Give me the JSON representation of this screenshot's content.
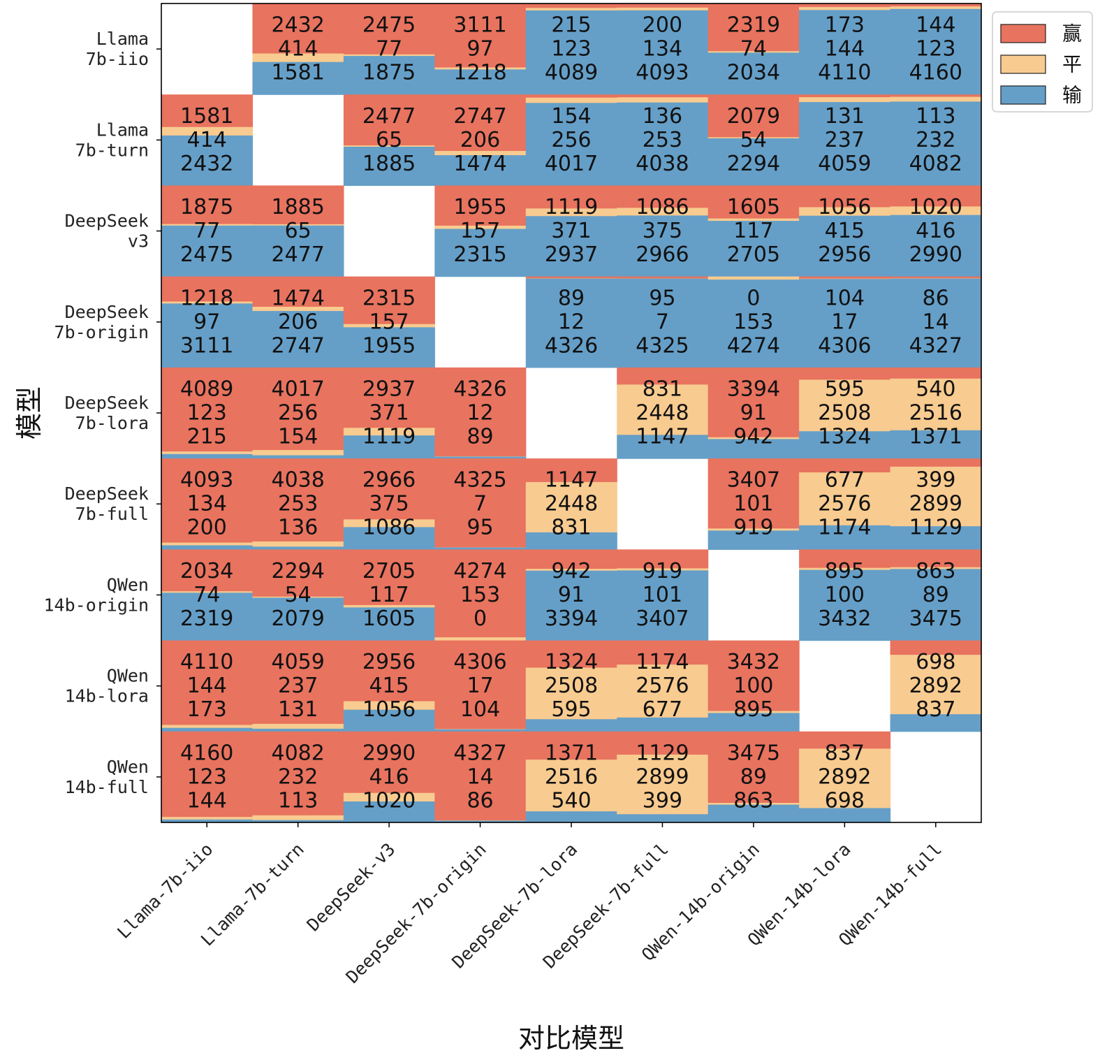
{
  "chart_data": {
    "type": "heatmap",
    "xlabel": "对比模型",
    "ylabel": "模型",
    "row_labels": [
      [
        "Llama",
        "7b-iio"
      ],
      [
        "Llama",
        "7b-turn"
      ],
      [
        "DeepSeek",
        "v3"
      ],
      [
        "DeepSeek",
        "7b-origin"
      ],
      [
        "DeepSeek",
        "7b-lora"
      ],
      [
        "DeepSeek",
        "7b-full"
      ],
      [
        "QWen",
        "14b-origin"
      ],
      [
        "QWen",
        "14b-lora"
      ],
      [
        "QWen",
        "14b-full"
      ]
    ],
    "col_labels": [
      "Llama-7b-iio",
      "Llama-7b-turn",
      "DeepSeek-v3",
      "DeepSeek-7b-origin",
      "DeepSeek-7b-lora",
      "DeepSeek-7b-full",
      "QWen-14b-origin",
      "QWen-14b-lora",
      "QWen-14b-full"
    ],
    "series": [
      {
        "name": "赢",
        "color": "#E8735F"
      },
      {
        "name": "平",
        "color": "#F8CB90"
      },
      {
        "name": "输",
        "color": "#659FC8"
      }
    ],
    "legend_position": "upper-right-outside",
    "cells": [
      [
        null,
        [
          2432,
          414,
          1581
        ],
        [
          2475,
          77,
          1875
        ],
        [
          3111,
          97,
          1218
        ],
        [
          215,
          123,
          4089
        ],
        [
          200,
          134,
          4093
        ],
        [
          2319,
          74,
          2034
        ],
        [
          173,
          144,
          4110
        ],
        [
          144,
          123,
          4160
        ]
      ],
      [
        [
          1581,
          414,
          2432
        ],
        null,
        [
          2477,
          65,
          1885
        ],
        [
          2747,
          206,
          1474
        ],
        [
          154,
          256,
          4017
        ],
        [
          136,
          253,
          4038
        ],
        [
          2079,
          54,
          2294
        ],
        [
          131,
          237,
          4059
        ],
        [
          113,
          232,
          4082
        ]
      ],
      [
        [
          1875,
          77,
          2475
        ],
        [
          1885,
          65,
          2477
        ],
        null,
        [
          1955,
          157,
          2315
        ],
        [
          1119,
          371,
          2937
        ],
        [
          1086,
          375,
          2966
        ],
        [
          1605,
          117,
          2705
        ],
        [
          1056,
          415,
          2956
        ],
        [
          1020,
          416,
          2990
        ]
      ],
      [
        [
          1218,
          97,
          3111
        ],
        [
          1474,
          206,
          2747
        ],
        [
          2315,
          157,
          1955
        ],
        null,
        [
          89,
          12,
          4326
        ],
        [
          95,
          7,
          4325
        ],
        [
          0,
          153,
          4274
        ],
        [
          104,
          17,
          4306
        ],
        [
          86,
          14,
          4327
        ]
      ],
      [
        [
          4089,
          123,
          215
        ],
        [
          4017,
          256,
          154
        ],
        [
          2937,
          371,
          1119
        ],
        [
          4326,
          12,
          89
        ],
        null,
        [
          831,
          2448,
          1147
        ],
        [
          3394,
          91,
          942
        ],
        [
          595,
          2508,
          1324
        ],
        [
          540,
          2516,
          1371
        ]
      ],
      [
        [
          4093,
          134,
          200
        ],
        [
          4038,
          253,
          136
        ],
        [
          2966,
          375,
          1086
        ],
        [
          4325,
          7,
          95
        ],
        [
          1147,
          2448,
          831
        ],
        null,
        [
          3407,
          101,
          919
        ],
        [
          677,
          2576,
          1174
        ],
        [
          399,
          2899,
          1129
        ]
      ],
      [
        [
          2034,
          74,
          2319
        ],
        [
          2294,
          54,
          2079
        ],
        [
          2705,
          117,
          1605
        ],
        [
          4274,
          153,
          0
        ],
        [
          942,
          91,
          3394
        ],
        [
          919,
          101,
          3407
        ],
        null,
        [
          895,
          100,
          3432
        ],
        [
          863,
          89,
          3475
        ]
      ],
      [
        [
          4110,
          144,
          173
        ],
        [
          4059,
          237,
          131
        ],
        [
          2956,
          415,
          1056
        ],
        [
          4306,
          17,
          104
        ],
        [
          1324,
          2508,
          595
        ],
        [
          1174,
          2576,
          677
        ],
        [
          3432,
          100,
          895
        ],
        null,
        [
          698,
          2892,
          837
        ]
      ],
      [
        [
          4160,
          123,
          144
        ],
        [
          4082,
          232,
          113
        ],
        [
          2990,
          416,
          1020
        ],
        [
          4327,
          14,
          86
        ],
        [
          1371,
          2516,
          540
        ],
        [
          1129,
          2899,
          399
        ],
        [
          3475,
          89,
          863
        ],
        [
          837,
          2892,
          698
        ],
        null
      ]
    ]
  }
}
